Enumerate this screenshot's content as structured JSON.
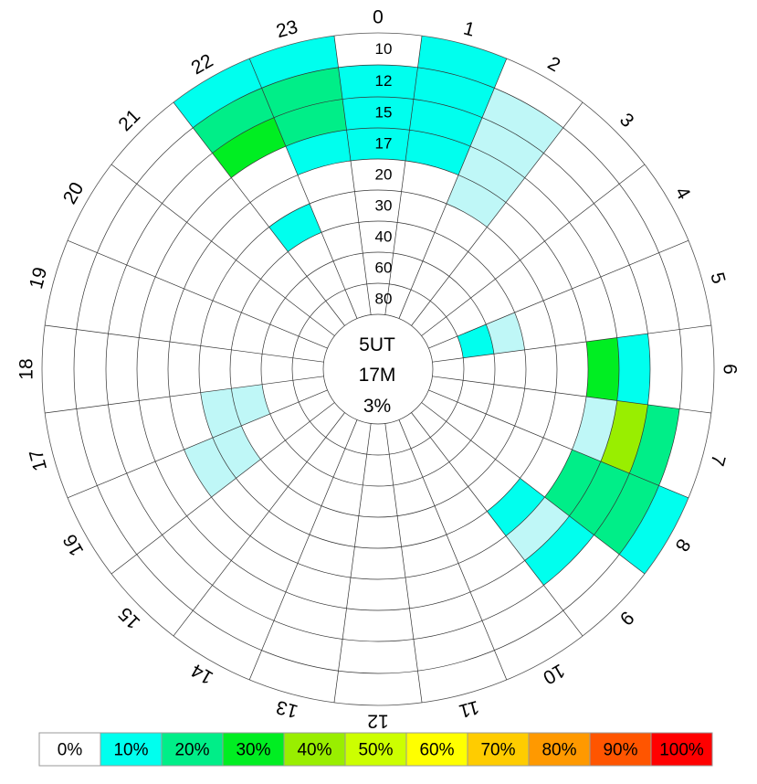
{
  "chart_data": {
    "type": "heatmap",
    "subtype": "polar",
    "center_text": [
      "5UT",
      "17M",
      "3%"
    ],
    "hour_labels": [
      "0",
      "1",
      "2",
      "3",
      "4",
      "5",
      "6",
      "7",
      "8",
      "9",
      "10",
      "11",
      "12",
      "13",
      "14",
      "15",
      "16",
      "17",
      "18",
      "19",
      "20",
      "21",
      "22",
      "23"
    ],
    "ring_labels": [
      "10",
      "12",
      "15",
      "17",
      "20",
      "30",
      "40",
      "60",
      "80"
    ],
    "grid": true,
    "colorscale": [
      {
        "label": "0%",
        "color": "#ffffff"
      },
      {
        "label": "10%",
        "color": "#00ffee"
      },
      {
        "label": "20%",
        "color": "#00ee88"
      },
      {
        "label": "30%",
        "color": "#00ee22"
      },
      {
        "label": "40%",
        "color": "#99ee00"
      },
      {
        "label": "50%",
        "color": "#ccff00"
      },
      {
        "label": "60%",
        "color": "#ffff00"
      },
      {
        "label": "70%",
        "color": "#ffcc00"
      },
      {
        "label": "80%",
        "color": "#ff9900"
      },
      {
        "label": "90%",
        "color": "#ff5500"
      },
      {
        "label": "100%",
        "color": "#ff0000"
      }
    ],
    "cells": [
      {
        "hour": 23,
        "ring": "10",
        "value": 10
      },
      {
        "hour": 23,
        "ring": "12",
        "value": 20
      },
      {
        "hour": 23,
        "ring": "15",
        "value": 20
      },
      {
        "hour": 23,
        "ring": "17",
        "value": 10
      },
      {
        "hour": 22,
        "ring": "10",
        "value": 10
      },
      {
        "hour": 22,
        "ring": "12",
        "value": 20
      },
      {
        "hour": 22,
        "ring": "15",
        "value": 30
      },
      {
        "hour": 22,
        "ring": "30",
        "value": 10
      },
      {
        "hour": 0,
        "ring": "12",
        "value": 10
      },
      {
        "hour": 0,
        "ring": "15",
        "value": 10
      },
      {
        "hour": 0,
        "ring": "17",
        "value": 10
      },
      {
        "hour": 1,
        "ring": "10",
        "value": 10
      },
      {
        "hour": 1,
        "ring": "12",
        "value": 10
      },
      {
        "hour": 1,
        "ring": "15",
        "value": 10
      },
      {
        "hour": 1,
        "ring": "17",
        "value": 10
      },
      {
        "hour": 2,
        "ring": "12",
        "value": 5
      },
      {
        "hour": 2,
        "ring": "15",
        "value": 5
      },
      {
        "hour": 2,
        "ring": "17",
        "value": 5
      },
      {
        "hour": 2,
        "ring": "20",
        "value": 5
      },
      {
        "hour": 5,
        "ring": "40",
        "value": 5
      },
      {
        "hour": 5,
        "ring": "60",
        "value": 10
      },
      {
        "hour": 6,
        "ring": "15",
        "value": 10
      },
      {
        "hour": 6,
        "ring": "17",
        "value": 30
      },
      {
        "hour": 7,
        "ring": "12",
        "value": 20
      },
      {
        "hour": 7,
        "ring": "15",
        "value": 40
      },
      {
        "hour": 7,
        "ring": "17",
        "value": 5
      },
      {
        "hour": 8,
        "ring": "10",
        "value": 10
      },
      {
        "hour": 8,
        "ring": "12",
        "value": 20
      },
      {
        "hour": 8,
        "ring": "15",
        "value": 20
      },
      {
        "hour": 8,
        "ring": "17",
        "value": 20
      },
      {
        "hour": 9,
        "ring": "15",
        "value": 10
      },
      {
        "hour": 9,
        "ring": "17",
        "value": 5
      },
      {
        "hour": 9,
        "ring": "20",
        "value": 10
      },
      {
        "hour": 16,
        "ring": "20",
        "value": 5
      },
      {
        "hour": 16,
        "ring": "30",
        "value": 5
      },
      {
        "hour": 17,
        "ring": "30",
        "value": 5
      },
      {
        "hour": 17,
        "ring": "40",
        "value": 5
      }
    ]
  }
}
